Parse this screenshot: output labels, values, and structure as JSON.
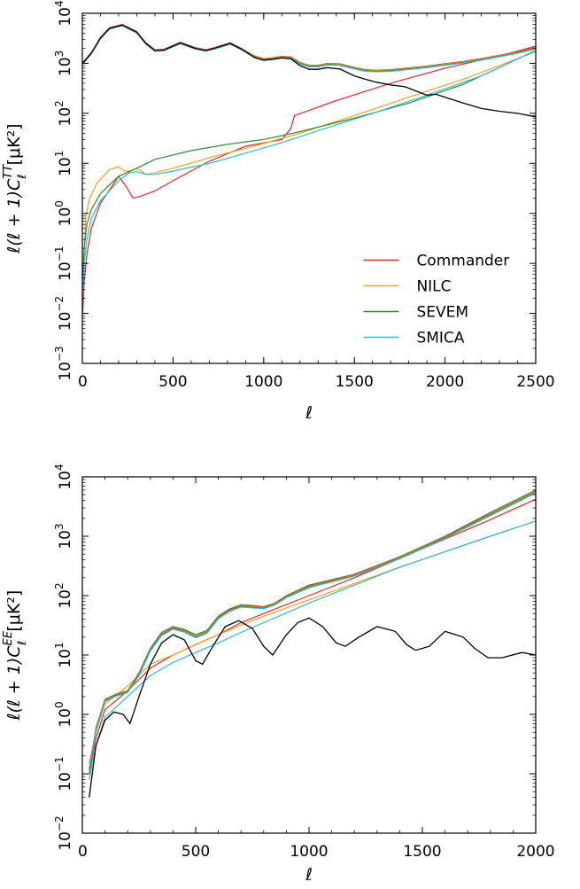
{
  "chart_data": [
    {
      "type": "line",
      "id": "tt",
      "title": "",
      "xlabel": "ℓ",
      "ylabel": "ℓ(ℓ + 1)C",
      "ylabel_sup": "TT",
      "ylabel_sub": "ℓ",
      "ylabel_units": "[μK²]",
      "xlim": [
        0,
        2500
      ],
      "ylim": [
        0.001,
        10000
      ],
      "yscale": "log",
      "grid": false,
      "legend_position": "lower-right",
      "x_ticks": [
        0,
        500,
        1000,
        1500,
        2000,
        2500
      ],
      "x_tick_labels": [
        "0",
        "500",
        "1000",
        "1500",
        "2000",
        "2500"
      ],
      "y_ticks": [
        0.001,
        0.01,
        0.1,
        1,
        10,
        100,
        1000,
        10000
      ],
      "y_tick_labels": [
        {
          "base": "10",
          "exp": "−3"
        },
        {
          "base": "10",
          "exp": "−2"
        },
        {
          "base": "10",
          "exp": "−1"
        },
        {
          "base": "10",
          "exp": "0"
        },
        {
          "base": "10",
          "exp": "1"
        },
        {
          "base": "10",
          "exp": "2"
        },
        {
          "base": "10",
          "exp": "3"
        },
        {
          "base": "10",
          "exp": "4"
        }
      ],
      "theory": {
        "color": "#000000",
        "x": [
          2,
          50,
          100,
          150,
          220,
          300,
          350,
          400,
          450,
          540,
          620,
          680,
          730,
          815,
          880,
          950,
          1000,
          1050,
          1100,
          1150,
          1200,
          1250,
          1300,
          1350,
          1420,
          1500,
          1560,
          1620,
          1700,
          1780,
          1850,
          1900,
          1950,
          2000,
          2100,
          2200,
          2300,
          2400,
          2500
        ],
        "y": [
          1000,
          1600,
          3200,
          5000,
          5800,
          4200,
          2500,
          1800,
          1850,
          2550,
          2000,
          1800,
          2000,
          2500,
          1900,
          1300,
          1150,
          1200,
          1280,
          1230,
          900,
          760,
          760,
          820,
          770,
          560,
          480,
          420,
          370,
          340,
          270,
          230,
          240,
          210,
          160,
          125,
          110,
          100,
          85
        ]
      },
      "series": [
        {
          "name": "Commander",
          "color": "#e8262a",
          "x": [
            2,
            10,
            25,
            50,
            100,
            200,
            240,
            280,
            320,
            400,
            500,
            700,
            900,
            1100,
            1150,
            1170,
            1400,
            1700,
            2000,
            2300,
            2500
          ],
          "y": [
            0.01,
            0.04,
            0.15,
            0.5,
            1.6,
            5.5,
            3.5,
            2.0,
            2.2,
            2.8,
            4.5,
            11,
            22,
            30,
            50,
            90,
            180,
            400,
            800,
            1400,
            2200
          ]
        },
        {
          "name": "NILC",
          "color": "#f7a11a",
          "x": [
            2,
            10,
            20,
            40,
            80,
            150,
            200,
            230,
            260,
            300,
            350,
            400,
            500,
            700,
            900,
            1000,
            1200,
            1500,
            1800,
            2100,
            2500
          ],
          "y": [
            0.02,
            0.2,
            0.9,
            2.0,
            4.0,
            7.5,
            8.5,
            7.0,
            7.0,
            8.0,
            6.0,
            6.5,
            8,
            13,
            20,
            25,
            40,
            90,
            210,
            480,
            1700
          ]
        },
        {
          "name": "SEVEM",
          "color": "#2e8b2e",
          "x": [
            2,
            10,
            25,
            50,
            100,
            200,
            300,
            400,
            600,
            800,
            1000,
            1200,
            1500,
            1800,
            2100,
            2500
          ],
          "y": [
            0.05,
            0.2,
            0.6,
            1.2,
            2.5,
            5.5,
            8,
            12,
            18,
            24,
            30,
            43,
            80,
            160,
            380,
            1800
          ]
        },
        {
          "name": "SMICA",
          "color": "#2bb7e6",
          "x": [
            2,
            10,
            25,
            50,
            100,
            200,
            260,
            300,
            350,
            400,
            500,
            700,
            900,
            1100,
            1300,
            1600,
            1900,
            2200,
            2500
          ],
          "y": [
            0.02,
            0.1,
            0.3,
            0.8,
            1.8,
            4.5,
            6.5,
            6.8,
            6.0,
            6.0,
            7,
            10,
            16,
            26,
            45,
            100,
            230,
            560,
            1800
          ]
        }
      ],
      "series_envelope": {
        "x": [
          2,
          50,
          100,
          150,
          220,
          300,
          350,
          400,
          450,
          540,
          620,
          680,
          730,
          815,
          880,
          950,
          1000,
          1050,
          1100,
          1150,
          1200,
          1250,
          1300,
          1350,
          1420,
          1500,
          1560,
          1620,
          1700,
          1800,
          1900,
          2000,
          2100,
          2200,
          2300,
          2400,
          2500
        ],
        "y": [
          1000,
          1600,
          3200,
          5000,
          5800,
          4200,
          2500,
          1800,
          1850,
          2550,
          2000,
          1800,
          2000,
          2500,
          1900,
          1350,
          1200,
          1250,
          1330,
          1300,
          1000,
          880,
          880,
          960,
          940,
          800,
          720,
          700,
          720,
          780,
          850,
          950,
          1050,
          1200,
          1400,
          1650,
          2000
        ]
      }
    },
    {
      "type": "line",
      "id": "ee",
      "title": "",
      "xlabel": "ℓ",
      "ylabel": "ℓ(ℓ + 1)C",
      "ylabel_sup": "EE",
      "ylabel_sub": "ℓ",
      "ylabel_units": "[μK²]",
      "xlim": [
        0,
        2000
      ],
      "ylim": [
        0.01,
        10000
      ],
      "yscale": "log",
      "grid": false,
      "x_ticks": [
        0,
        500,
        1000,
        1500,
        2000
      ],
      "x_tick_labels": [
        "0",
        "500",
        "1000",
        "1500",
        "2000"
      ],
      "y_ticks": [
        0.01,
        0.1,
        1,
        10,
        100,
        1000,
        10000
      ],
      "y_tick_labels": [
        {
          "base": "10",
          "exp": "−2"
        },
        {
          "base": "10",
          "exp": "−1"
        },
        {
          "base": "10",
          "exp": "0"
        },
        {
          "base": "10",
          "exp": "1"
        },
        {
          "base": "10",
          "exp": "2"
        },
        {
          "base": "10",
          "exp": "3"
        },
        {
          "base": "10",
          "exp": "4"
        }
      ],
      "theory": {
        "color": "#000000",
        "x": [
          30,
          60,
          100,
          140,
          180,
          210,
          250,
          300,
          350,
          400,
          450,
          500,
          530,
          580,
          630,
          690,
          750,
          800,
          840,
          900,
          950,
          1000,
          1060,
          1120,
          1160,
          1220,
          1300,
          1380,
          1430,
          1470,
          1530,
          1600,
          1680,
          1730,
          1790,
          1850,
          1940,
          2000
        ],
        "y": [
          0.04,
          0.3,
          0.8,
          1.1,
          1.0,
          0.7,
          2.0,
          7,
          16,
          22,
          18,
          8,
          7,
          15,
          30,
          38,
          28,
          14,
          10,
          22,
          35,
          42,
          30,
          16,
          14,
          20,
          30,
          25,
          15,
          12,
          14,
          25,
          20,
          13,
          9,
          9,
          11,
          10
        ]
      },
      "series": [
        {
          "name": "Commander",
          "color": "#e8262a",
          "x": [
            30,
            60,
            100,
            200,
            300,
            400,
            500,
            600,
            700,
            800,
            1000,
            1200,
            1400,
            1600,
            1800,
            2000
          ],
          "y": [
            0.1,
            0.4,
            1.2,
            2.5,
            6,
            10,
            15,
            22,
            35,
            50,
            100,
            200,
            420,
            900,
            1900,
            4200
          ]
        },
        {
          "name": "NILC",
          "color": "#f7a11a",
          "x": [
            30,
            60,
            100,
            200,
            300,
            400,
            500,
            600,
            700,
            800,
            1000,
            1200,
            1400,
            1600,
            1800,
            2000
          ],
          "y": [
            0.15,
            0.5,
            1.5,
            3,
            7,
            10,
            15,
            22,
            32,
            45,
            85,
            160,
            300,
            550,
            1000,
            1800
          ]
        },
        {
          "name": "SEVEM",
          "color": "#2e8b2e",
          "x": [
            30,
            60,
            100,
            150,
            200,
            250,
            300,
            350,
            400,
            450,
            500,
            550,
            600,
            650,
            700,
            750,
            800,
            850,
            900,
            1000,
            1200,
            1400,
            1600,
            1800,
            2000
          ],
          "y": [
            0.1,
            0.6,
            1.8,
            2.2,
            2.5,
            5,
            13,
            24,
            30,
            27,
            22,
            26,
            45,
            60,
            70,
            68,
            65,
            75,
            100,
            150,
            230,
            450,
            1000,
            2500,
            6000
          ]
        },
        {
          "name": "SMICA",
          "color": "#2bb7e6",
          "x": [
            30,
            60,
            100,
            200,
            300,
            400,
            500,
            600,
            700,
            800,
            1000,
            1200,
            1400,
            1600,
            1800,
            2000
          ],
          "y": [
            0.08,
            0.3,
            0.9,
            2.0,
            4.5,
            7.5,
            11,
            16,
            24,
            35,
            75,
            150,
            300,
            550,
            1000,
            1800
          ]
        }
      ],
      "series_envelope": {
        "x": [
          30,
          60,
          100,
          150,
          200,
          250,
          300,
          350,
          400,
          450,
          500,
          550,
          600,
          650,
          700,
          750,
          800,
          850,
          900,
          1000,
          1200,
          1400,
          1600,
          1800,
          2000
        ],
        "y": [
          0.12,
          0.55,
          1.7,
          2.1,
          2.4,
          4.6,
          12,
          22,
          28,
          25,
          20,
          24,
          42,
          56,
          66,
          64,
          62,
          72,
          95,
          140,
          220,
          430,
          950,
          2300,
          5500
        ]
      }
    }
  ],
  "legend": {
    "entries": [
      {
        "label": "Commander",
        "color": "#e8262a"
      },
      {
        "label": "NILC",
        "color": "#f7a11a"
      },
      {
        "label": "SEVEM",
        "color": "#2e8b2e"
      },
      {
        "label": "SMICA",
        "color": "#2bb7e6"
      }
    ]
  }
}
